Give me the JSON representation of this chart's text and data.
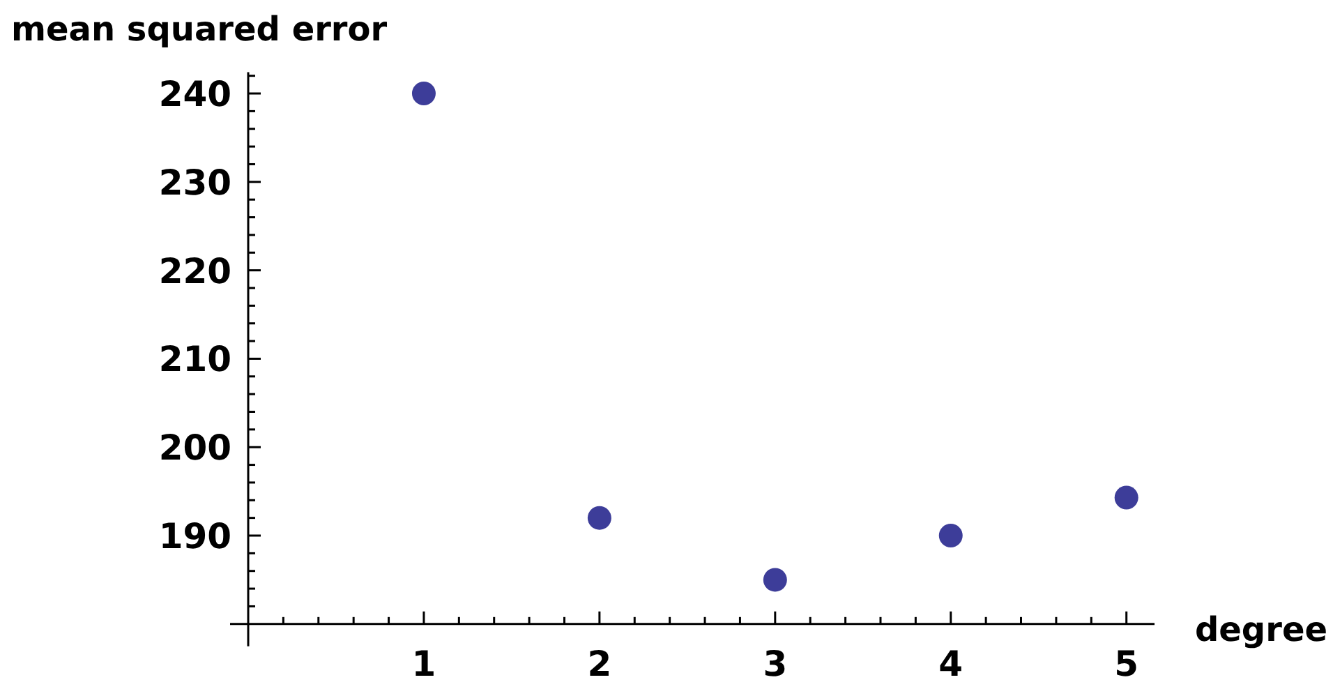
{
  "chart_data": {
    "type": "scatter",
    "xlabel": "degree",
    "ylabel": "mean squared error",
    "x": [
      1,
      2,
      3,
      4,
      5
    ],
    "series": [
      {
        "color": "#3d3d99",
        "values": [
          240,
          192,
          185,
          190,
          194.3
        ]
      }
    ],
    "marker": "circle",
    "xlim": [
      0,
      5.16
    ],
    "ylim": [
      180,
      242.4
    ],
    "xticks": [
      {
        "value": 0.2,
        "label": null
      },
      {
        "value": 0.4,
        "label": null
      },
      {
        "value": 0.6,
        "label": null
      },
      {
        "value": 0.8,
        "label": null
      },
      1,
      {
        "value": 1.2,
        "label": null
      },
      {
        "value": 1.4,
        "label": null
      },
      {
        "value": 1.6,
        "label": null
      },
      {
        "value": 1.8,
        "label": null
      },
      2,
      {
        "value": 2.2,
        "label": null
      },
      {
        "value": 2.4,
        "label": null
      },
      {
        "value": 2.6,
        "label": null
      },
      {
        "value": 2.8,
        "label": null
      },
      3,
      {
        "value": 3.2,
        "label": null
      },
      {
        "value": 3.4,
        "label": null
      },
      {
        "value": 3.6,
        "label": null
      },
      {
        "value": 3.8,
        "label": null
      },
      4,
      {
        "value": 4.2,
        "label": null
      },
      {
        "value": 4.4,
        "label": null
      },
      {
        "value": 4.6,
        "label": null
      },
      {
        "value": 4.8,
        "label": null
      },
      5
    ],
    "yticks": [
      {
        "value": 182,
        "label": null
      },
      {
        "value": 184,
        "label": null
      },
      {
        "value": 186,
        "label": null
      },
      {
        "value": 188,
        "label": null
      },
      190,
      {
        "value": 192,
        "label": null
      },
      {
        "value": 194,
        "label": null
      },
      {
        "value": 196,
        "label": null
      },
      {
        "value": 198,
        "label": null
      },
      200,
      {
        "value": 202,
        "label": null
      },
      {
        "value": 204,
        "label": null
      },
      {
        "value": 206,
        "label": null
      },
      {
        "value": 208,
        "label": null
      },
      210,
      {
        "value": 212,
        "label": null
      },
      {
        "value": 214,
        "label": null
      },
      {
        "value": 216,
        "label": null
      },
      {
        "value": 218,
        "label": null
      },
      220,
      {
        "value": 222,
        "label": null
      },
      {
        "value": 224,
        "label": null
      },
      {
        "value": 226,
        "label": null
      },
      {
        "value": 228,
        "label": null
      },
      230,
      {
        "value": 232,
        "label": null
      },
      {
        "value": 234,
        "label": null
      },
      {
        "value": 236,
        "label": null
      },
      {
        "value": 238,
        "label": null
      },
      240,
      {
        "value": 242,
        "label": null
      }
    ]
  }
}
